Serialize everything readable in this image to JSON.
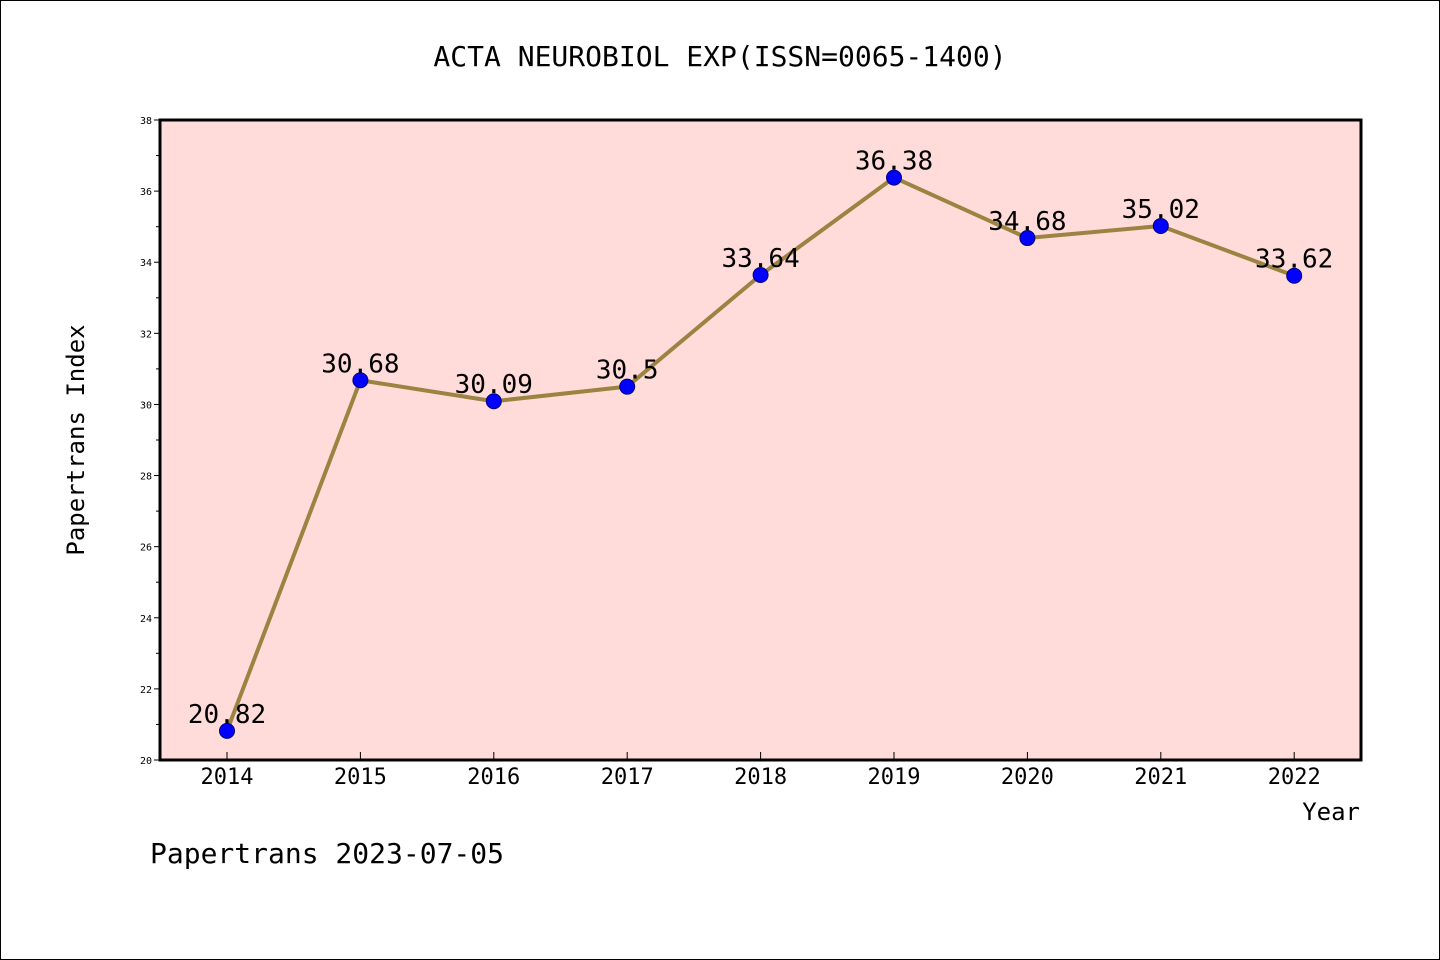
{
  "chart_data": {
    "type": "line",
    "title": "ACTA NEUROBIOL EXP(ISSN=0065-1400)",
    "xlabel": "Year",
    "ylabel": "Papertrans Index",
    "categories": [
      "2014",
      "2015",
      "2016",
      "2017",
      "2018",
      "2019",
      "2020",
      "2021",
      "2022"
    ],
    "values": [
      20.82,
      30.68,
      30.09,
      30.5,
      33.64,
      36.38,
      34.68,
      35.02,
      33.62
    ],
    "data_labels": [
      "20.82",
      "30.68",
      "30.09",
      "30.5",
      "33.64",
      "36.38",
      "34.68",
      "35.02",
      "33.62"
    ],
    "ylim": [
      20,
      38
    ],
    "yticks": [
      20,
      22,
      24,
      26,
      28,
      30,
      32,
      34,
      36,
      38
    ],
    "grid": false,
    "colors": {
      "plot_background": "#ffdcd9",
      "line": "#9b8441",
      "marker": "#0000ff"
    }
  },
  "footer": "Papertrans 2023-07-05"
}
